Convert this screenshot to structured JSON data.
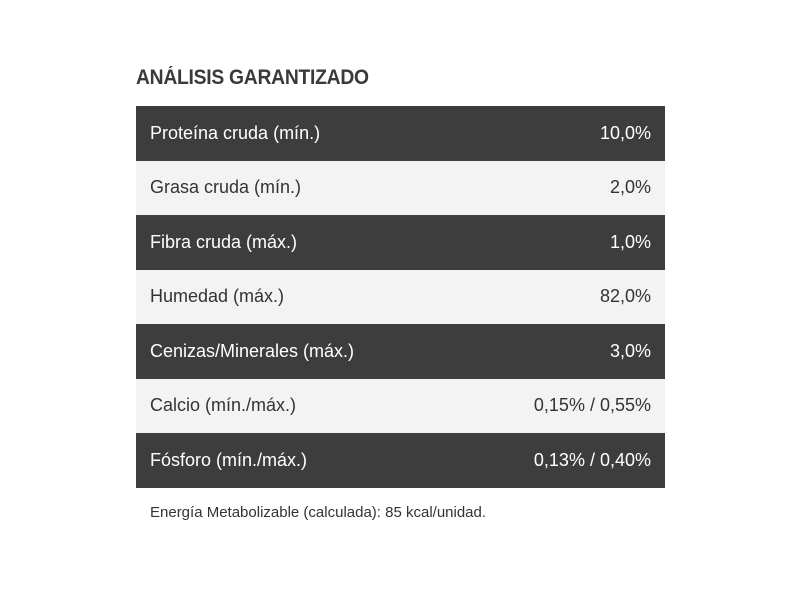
{
  "title": "ANÁLISIS GARANTIZADO",
  "rows": [
    {
      "label": "Proteína cruda (mín.)",
      "value": "10,0%"
    },
    {
      "label": "Grasa cruda (mín.)",
      "value": "2,0%"
    },
    {
      "label": "Fibra cruda (máx.)",
      "value": "1,0%"
    },
    {
      "label": "Humedad (máx.)",
      "value": "82,0%"
    },
    {
      "label": "Cenizas/Minerales (máx.)",
      "value": "3,0%"
    },
    {
      "label": "Calcio (mín./máx.)",
      "value": "0,15% / 0,55%"
    },
    {
      "label": "Fósforo (mín./máx.)",
      "value": "0,13% / 0,40%"
    }
  ],
  "footnote": "Energía Metabolizable (calculada): 85 kcal/unidad.",
  "colors": {
    "dark_row": "#3d3d3d",
    "light_row": "#f3f3f3",
    "title": "#3a3a3a"
  }
}
